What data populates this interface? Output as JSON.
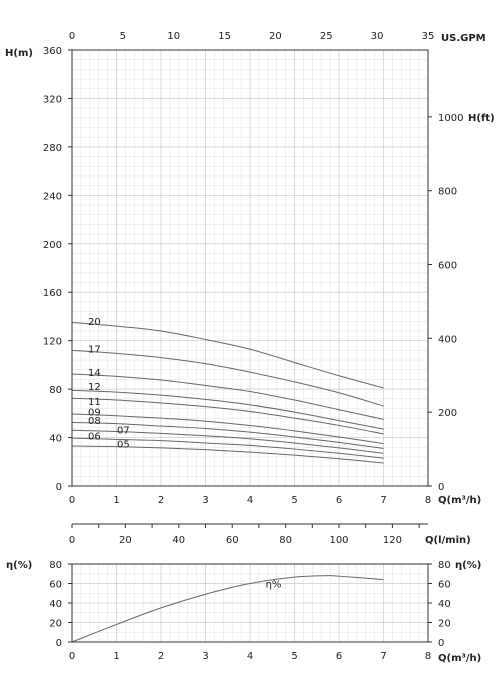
{
  "chart_data": [
    {
      "type": "line",
      "name": "head-curves",
      "x_axis": {
        "label": "Q(m³/h)",
        "range": [
          0,
          8
        ],
        "ticks": [
          0,
          1,
          2,
          3,
          4,
          5,
          6,
          7,
          8
        ]
      },
      "x_axis_top": {
        "label": "US.GPM",
        "range": [
          0,
          35
        ],
        "ticks": [
          0,
          5,
          10,
          15,
          20,
          25,
          30,
          35
        ]
      },
      "y_axis_left": {
        "label": "H(m)",
        "range": [
          0,
          360
        ],
        "ticks": [
          0,
          40,
          80,
          120,
          160,
          200,
          240,
          280,
          320,
          360
        ]
      },
      "y_axis_right": {
        "label": "H(ft)",
        "ticks": [
          0,
          200,
          400,
          600,
          800,
          1000
        ]
      },
      "grid": true,
      "x": [
        0,
        1,
        2,
        3,
        4,
        5,
        6,
        7
      ],
      "series": [
        {
          "name": "20",
          "values": [
            135,
            132,
            128,
            121,
            113,
            102,
            91,
            81
          ]
        },
        {
          "name": "17",
          "values": [
            112,
            109.5,
            106,
            101,
            94,
            86,
            77,
            66
          ]
        },
        {
          "name": "14",
          "values": [
            92.5,
            90.5,
            87.5,
            83,
            78,
            71,
            63,
            55
          ]
        },
        {
          "name": "12",
          "values": [
            79,
            77.5,
            75,
            71.5,
            67,
            61,
            54,
            47
          ]
        },
        {
          "name": "11",
          "values": [
            72.5,
            71,
            68.5,
            65.5,
            61.5,
            56,
            50,
            43
          ]
        },
        {
          "name": "09",
          "values": [
            59.5,
            58,
            56,
            53.5,
            50,
            45.5,
            40.5,
            35
          ]
        },
        {
          "name": "08",
          "values": [
            52.5,
            51.5,
            49.5,
            47.5,
            44.5,
            40.5,
            36,
            31
          ]
        },
        {
          "name": "07",
          "values": [
            46,
            45,
            43.5,
            41.5,
            39,
            35.5,
            31.5,
            27
          ]
        },
        {
          "name": "06",
          "values": [
            39.5,
            38.5,
            37.5,
            35.5,
            33.5,
            30.5,
            27,
            23
          ]
        },
        {
          "name": "05",
          "values": [
            33,
            32.5,
            31.5,
            30,
            28,
            25.5,
            22.5,
            19
          ]
        }
      ]
    },
    {
      "type": "line",
      "name": "flow-scale",
      "x_axis": {
        "label": "Q(l/min)",
        "range": [
          0,
          133.33
        ],
        "ticks": [
          0,
          20,
          40,
          60,
          80,
          100,
          120
        ]
      }
    },
    {
      "type": "line",
      "name": "efficiency-curve",
      "x_axis": {
        "label": "Q(m³/h)",
        "range": [
          0,
          8
        ],
        "ticks": [
          0,
          1,
          2,
          3,
          4,
          5,
          6,
          7,
          8
        ]
      },
      "y_axis_left": {
        "label": "η(%)",
        "range": [
          0,
          80
        ],
        "ticks": [
          0,
          10,
          20,
          30,
          40,
          50,
          60,
          70,
          80
        ],
        "tick_labels": [
          "0",
          "20",
          "40",
          "60",
          "80"
        ]
      },
      "y_axis_right": {
        "label": "η(%)",
        "tick_labels": [
          "0",
          "20",
          "40",
          "60",
          "80"
        ]
      },
      "grid": true,
      "x": [
        0,
        1,
        2,
        3,
        4,
        5,
        5.7,
        6,
        7
      ],
      "series": [
        {
          "name": "η%",
          "values": [
            0,
            18,
            35,
            49,
            60,
            66.5,
            68,
            67.5,
            64
          ]
        }
      ]
    }
  ]
}
